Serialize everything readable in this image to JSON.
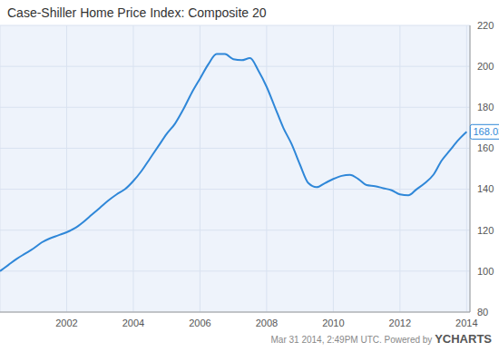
{
  "chart_data": {
    "type": "line",
    "title": "Case-Shiller Home Price Index: Composite 20",
    "x": [
      2000.0,
      2000.25,
      2000.5,
      2000.75,
      2001.0,
      2001.25,
      2001.5,
      2001.75,
      2002.0,
      2002.25,
      2002.5,
      2002.75,
      2003.0,
      2003.25,
      2003.5,
      2003.75,
      2004.0,
      2004.25,
      2004.5,
      2004.75,
      2005.0,
      2005.25,
      2005.5,
      2005.75,
      2006.0,
      2006.25,
      2006.5,
      2006.75,
      2007.0,
      2007.25,
      2007.5,
      2007.75,
      2008.0,
      2008.25,
      2008.5,
      2008.75,
      2009.0,
      2009.25,
      2009.5,
      2009.75,
      2010.0,
      2010.25,
      2010.5,
      2010.75,
      2011.0,
      2011.25,
      2011.5,
      2011.75,
      2012.0,
      2012.25,
      2012.5,
      2012.75,
      2013.0,
      2013.25,
      2013.5,
      2013.75,
      2014.0
    ],
    "series": [
      {
        "name": "Composite 20",
        "color": "#2f87d8",
        "values": [
          100,
          103,
          106,
          108.5,
          111,
          114,
          116,
          117.5,
          119,
          121,
          124,
          127.5,
          131,
          134.5,
          137.5,
          140,
          144,
          149,
          155,
          161,
          167,
          172,
          179,
          187,
          194,
          201,
          206,
          206,
          203.5,
          203,
          204,
          198,
          190,
          180,
          170,
          162,
          152,
          143,
          141,
          143,
          145,
          146.5,
          147,
          145,
          142,
          141.5,
          140.5,
          139.5,
          137.5,
          137,
          140,
          143,
          147,
          154,
          159,
          164,
          168.03
        ]
      }
    ],
    "xlim": [
      2000,
      2014.1
    ],
    "xticks": [
      2002,
      2004,
      2006,
      2008,
      2010,
      2012,
      2014
    ],
    "ylim": [
      80,
      220
    ],
    "yticks": [
      80,
      100,
      120,
      140,
      160,
      180,
      200,
      220
    ],
    "grid": true,
    "annotations": [
      {
        "x": 2014.0,
        "y": 168.03,
        "text": "168.03"
      }
    ],
    "footer": {
      "text": "Mar 31 2014, 2:49PM UTC. Powered by",
      "brand": "YCHARTS"
    }
  }
}
